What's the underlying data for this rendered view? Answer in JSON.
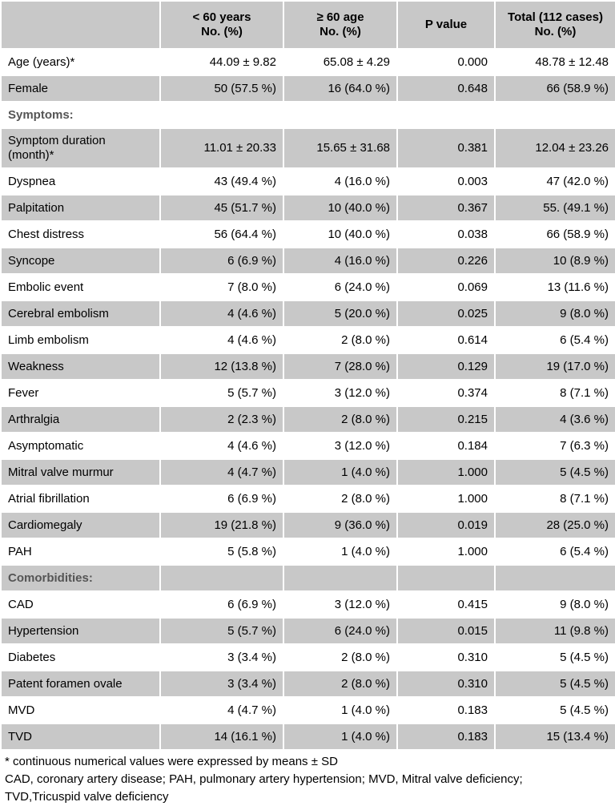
{
  "table": {
    "headers": [
      {
        "line1": "",
        "line2": ""
      },
      {
        "line1": "< 60 years",
        "line2": "No. (%)"
      },
      {
        "line1": "≥ 60 age",
        "line2": "No. (%)"
      },
      {
        "line1": "P value",
        "line2": ""
      },
      {
        "line1": "Total (112 cases)",
        "line2": "No. (%)"
      }
    ],
    "rows": [
      {
        "label": "Age (years)*",
        "cells": [
          "44.09 ± 9.82",
          "65.08 ± 4.29",
          "0.000",
          "48.78 ± 12.48"
        ],
        "shaded": false
      },
      {
        "label": "Female",
        "cells": [
          "50 (57.5 %)",
          "16 (64.0 %)",
          "0.648",
          "66 (58.9 %)"
        ],
        "shaded": true
      },
      {
        "label": "Symptoms:",
        "cells": [
          "",
          "",
          "",
          ""
        ],
        "shaded": false,
        "section": true
      },
      {
        "label": "Symptom duration (month)*",
        "cells": [
          "11.01 ± 20.33",
          "15.65 ± 31.68",
          "0.381",
          "12.04 ± 23.26"
        ],
        "shaded": true,
        "tall": true
      },
      {
        "label": "Dyspnea",
        "cells": [
          "43 (49.4 %)",
          "4 (16.0 %)",
          "0.003",
          "47 (42.0 %)"
        ],
        "shaded": false
      },
      {
        "label": "Palpitation",
        "cells": [
          "45 (51.7 %)",
          "10 (40.0 %)",
          "0.367",
          "55. (49.1 %)"
        ],
        "shaded": true
      },
      {
        "label": "Chest distress",
        "cells": [
          "56 (64.4 %)",
          "10 (40.0 %)",
          "0.038",
          "66 (58.9 %)"
        ],
        "shaded": false
      },
      {
        "label": "Syncope",
        "cells": [
          "6 (6.9 %)",
          "4 (16.0 %)",
          "0.226",
          "10 (8.9 %)"
        ],
        "shaded": true
      },
      {
        "label": "Embolic event",
        "cells": [
          "7 (8.0 %)",
          "6 (24.0 %)",
          "0.069",
          "13 (11.6 %)"
        ],
        "shaded": false
      },
      {
        "label": "Cerebral embolism",
        "cells": [
          "4 (4.6 %)",
          "5 (20.0 %)",
          "0.025",
          "9 (8.0 %)"
        ],
        "shaded": true
      },
      {
        "label": "Limb embolism",
        "cells": [
          "4 (4.6 %)",
          "2 (8.0 %)",
          "0.614",
          "6 (5.4 %)"
        ],
        "shaded": false
      },
      {
        "label": "Weakness",
        "cells": [
          "12 (13.8 %)",
          "7 (28.0 %)",
          "0.129",
          "19 (17.0 %)"
        ],
        "shaded": true
      },
      {
        "label": "Fever",
        "cells": [
          "5 (5.7 %)",
          "3 (12.0 %)",
          "0.374",
          "8 (7.1 %)"
        ],
        "shaded": false
      },
      {
        "label": "Arthralgia",
        "cells": [
          "2 (2.3 %)",
          "2 (8.0 %)",
          "0.215",
          "4 (3.6 %)"
        ],
        "shaded": true
      },
      {
        "label": "Asymptomatic",
        "cells": [
          "4 (4.6 %)",
          "3 (12.0 %)",
          "0.184",
          "7 (6.3 %)"
        ],
        "shaded": false
      },
      {
        "label": "Mitral valve murmur",
        "cells": [
          "4 (4.7 %)",
          "1 (4.0 %)",
          "1.000",
          "5 (4.5 %)"
        ],
        "shaded": true
      },
      {
        "label": "Atrial fibrillation",
        "cells": [
          "6 (6.9 %)",
          "2 (8.0 %)",
          "1.000",
          "8 (7.1 %)"
        ],
        "shaded": false
      },
      {
        "label": "Cardiomegaly",
        "cells": [
          "19 (21.8 %)",
          "9 (36.0 %)",
          "0.019",
          "28 (25.0 %)"
        ],
        "shaded": true
      },
      {
        "label": "PAH",
        "cells": [
          "5 (5.8 %)",
          "1 (4.0 %)",
          "1.000",
          "6 (5.4 %)"
        ],
        "shaded": false
      },
      {
        "label": "Comorbidities:",
        "cells": [
          "",
          "",
          "",
          ""
        ],
        "shaded": true,
        "section": true
      },
      {
        "label": "CAD",
        "cells": [
          "6 (6.9 %)",
          "3 (12.0 %)",
          "0.415",
          "9 (8.0 %)"
        ],
        "shaded": false
      },
      {
        "label": "Hypertension",
        "cells": [
          "5 (5.7 %)",
          "6 (24.0 %)",
          "0.015",
          "11 (9.8 %)"
        ],
        "shaded": true
      },
      {
        "label": "Diabetes",
        "cells": [
          "3 (3.4 %)",
          "2 (8.0 %)",
          "0.310",
          "5 (4.5 %)"
        ],
        "shaded": false
      },
      {
        "label": "Patent foramen ovale",
        "cells": [
          "3 (3.4 %)",
          "2 (8.0 %)",
          "0.310",
          "5 (4.5 %)"
        ],
        "shaded": true
      },
      {
        "label": "MVD",
        "cells": [
          "4 (4.7 %)",
          "1 (4.0 %)",
          "0.183",
          "5 (4.5 %)"
        ],
        "shaded": false
      },
      {
        "label": "TVD",
        "cells": [
          "14 (16.1 %)",
          "1 (4.0 %)",
          "0.183",
          "15 (13.4 %)"
        ],
        "shaded": true
      }
    ]
  },
  "notes": [
    "* continuous numerical values were expressed by means ± SD",
    "CAD, coronary artery disease; PAH, pulmonary artery hypertension; MVD, Mitral valve deficiency;",
    "TVD,Tricuspid valve deficiency"
  ]
}
